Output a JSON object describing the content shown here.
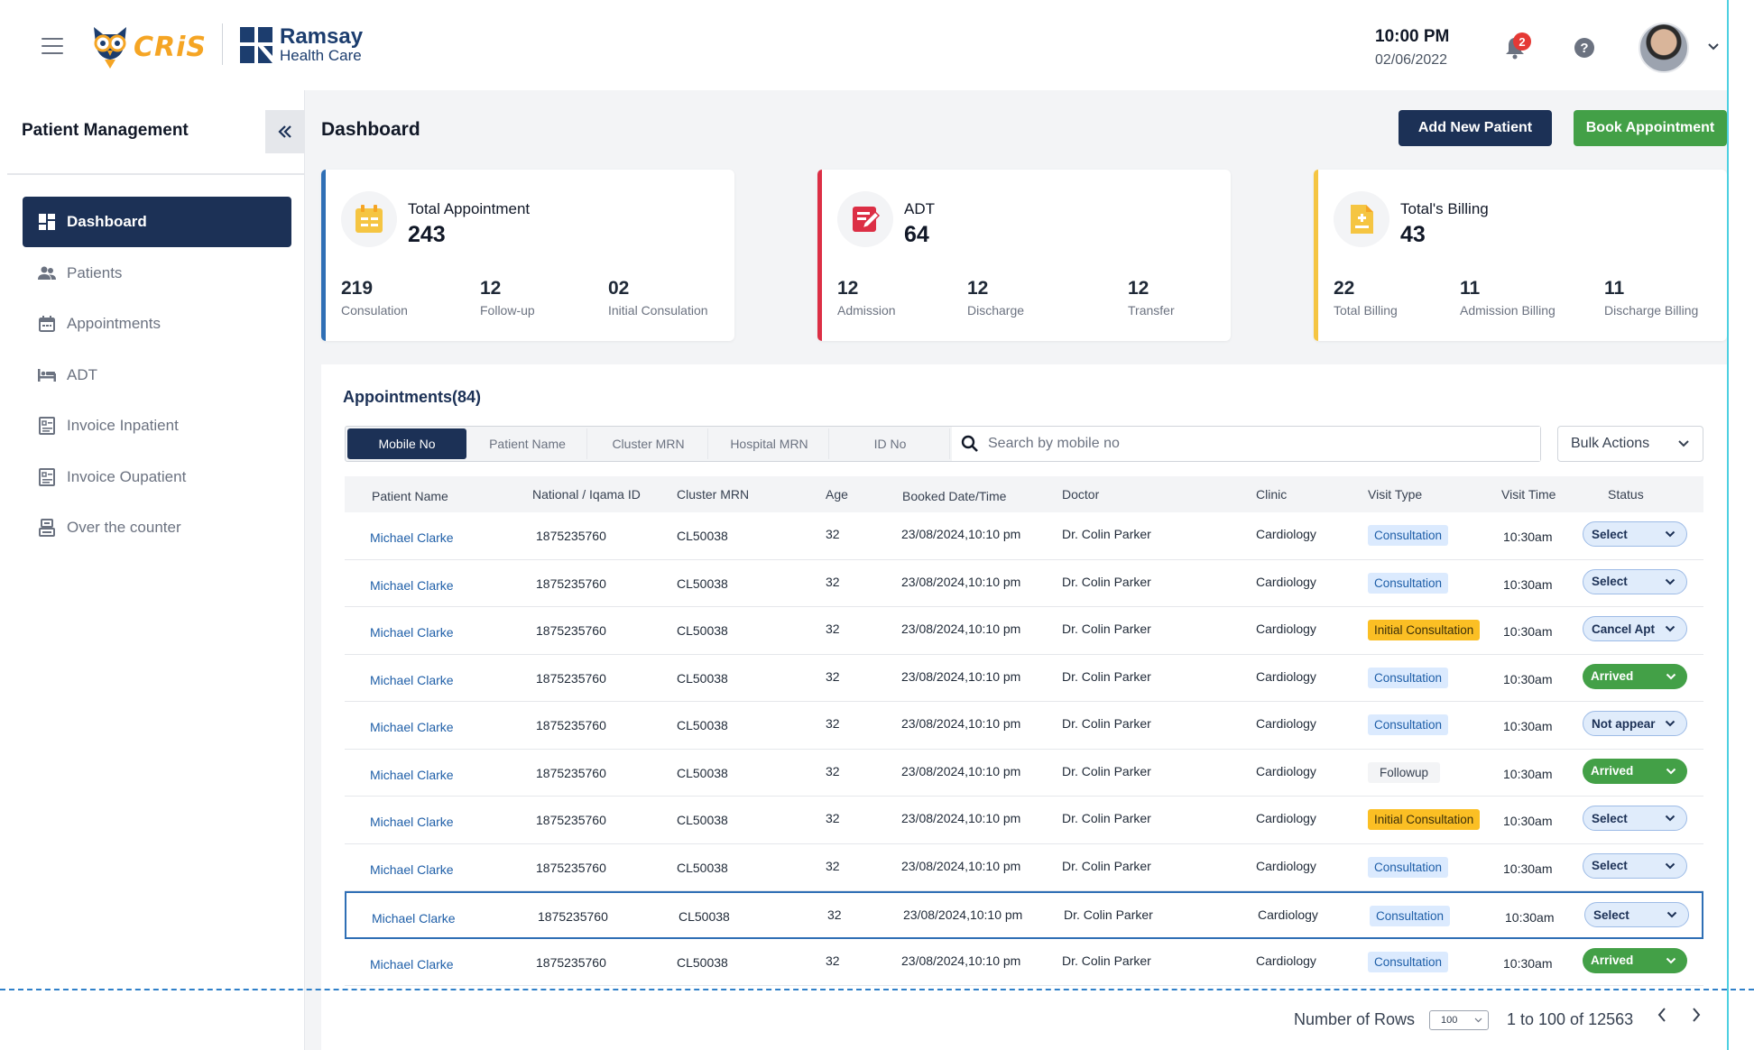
{
  "header": {
    "cris_logo": "CRiS",
    "brand_title": "Ramsay",
    "brand_subtitle": "Health Care",
    "time": "10:00 PM",
    "date": "02/06/2022",
    "notification_count": "2",
    "help_glyph": "?"
  },
  "sidebar": {
    "title": "Patient Management",
    "items": [
      {
        "label": "Dashboard",
        "icon": "dashboard-icon",
        "active": true
      },
      {
        "label": "Patients",
        "icon": "people-icon"
      },
      {
        "label": "Appointments",
        "icon": "calendar-icon"
      },
      {
        "label": "ADT",
        "icon": "bed-icon"
      },
      {
        "label": "Invoice Inpatient",
        "icon": "invoice-icon"
      },
      {
        "label": "Invoice Oupatient",
        "icon": "invoice-icon"
      },
      {
        "label": "Over the counter",
        "icon": "counter-icon"
      }
    ]
  },
  "main": {
    "title": "Dashboard",
    "add_patient_label": "Add New Patient",
    "book_appointment_label": "Book Appointment"
  },
  "cards": [
    {
      "label": "Total Appointment",
      "value": "243",
      "accent": "#2f6fb5",
      "icon_color": "#f5a524",
      "stats": [
        {
          "num": "219",
          "label": "Consulation"
        },
        {
          "num": "12",
          "label": "Follow-up"
        },
        {
          "num": "02",
          "label": "Initial Consulation"
        }
      ]
    },
    {
      "label": "ADT",
      "value": "64",
      "accent": "#dc2f45",
      "icon_color": "#dc2f45",
      "stats": [
        {
          "num": "12",
          "label": "Admission"
        },
        {
          "num": "12",
          "label": "Discharge"
        },
        {
          "num": "12",
          "label": "Transfer"
        }
      ]
    },
    {
      "label": "Total's Billing",
      "value": "43",
      "accent": "#f5c542",
      "icon_color": "#f5c542",
      "stats": [
        {
          "num": "22",
          "label": "Total Billing"
        },
        {
          "num": "11",
          "label": "Admission Billing"
        },
        {
          "num": "11",
          "label": "Discharge Billing"
        }
      ]
    }
  ],
  "appointments": {
    "title": "Appointments(84)",
    "filters": [
      "Mobile No",
      "Patient Name",
      "Cluster MRN",
      "Hospital MRN",
      "ID No"
    ],
    "search_placeholder": "Search by mobile no",
    "bulk_actions_label": "Bulk Actions",
    "columns": [
      "Patient Name",
      "National / Iqama ID",
      "Cluster MRN",
      "Age",
      "Booked  Date/Time",
      "Doctor",
      "Clinic",
      "Visit Type",
      "Visit Time",
      "Status"
    ],
    "rows": [
      {
        "name": "Michael Clarke",
        "nid": "1875235760",
        "mrn": "CL50038",
        "age": "32",
        "booked": "23/08/2024,10:10 pm",
        "doctor": "Dr. Colin Parker",
        "clinic": "Cardiology",
        "visit": "Consultation",
        "visit_kind": "cons",
        "time": "10:30am",
        "status": "Select",
        "status_kind": "select"
      },
      {
        "name": "Michael Clarke",
        "nid": "1875235760",
        "mrn": "CL50038",
        "age": "32",
        "booked": "23/08/2024,10:10 pm",
        "doctor": "Dr. Colin Parker",
        "clinic": "Cardiology",
        "visit": "Consultation",
        "visit_kind": "cons",
        "time": "10:30am",
        "status": "Select",
        "status_kind": "select"
      },
      {
        "name": "Michael Clarke",
        "nid": "1875235760",
        "mrn": "CL50038",
        "age": "32",
        "booked": "23/08/2024,10:10 pm",
        "doctor": "Dr. Colin Parker",
        "clinic": "Cardiology",
        "visit": "Initial Consultation",
        "visit_kind": "init",
        "time": "10:30am",
        "status": "Cancel Apt",
        "status_kind": "select"
      },
      {
        "name": "Michael Clarke",
        "nid": "1875235760",
        "mrn": "CL50038",
        "age": "32",
        "booked": "23/08/2024,10:10 pm",
        "doctor": "Dr. Colin Parker",
        "clinic": "Cardiology",
        "visit": "Consultation",
        "visit_kind": "cons",
        "time": "10:30am",
        "status": "Arrived",
        "status_kind": "arrived"
      },
      {
        "name": "Michael Clarke",
        "nid": "1875235760",
        "mrn": "CL50038",
        "age": "32",
        "booked": "23/08/2024,10:10 pm",
        "doctor": "Dr. Colin Parker",
        "clinic": "Cardiology",
        "visit": "Consultation",
        "visit_kind": "cons",
        "time": "10:30am",
        "status": "Not appear",
        "status_kind": "select"
      },
      {
        "name": "Michael Clarke",
        "nid": "1875235760",
        "mrn": "CL50038",
        "age": "32",
        "booked": "23/08/2024,10:10 pm",
        "doctor": "Dr. Colin Parker",
        "clinic": "Cardiology",
        "visit": "Followup",
        "visit_kind": "follow",
        "time": "10:30am",
        "status": "Arrived",
        "status_kind": "arrived"
      },
      {
        "name": "Michael Clarke",
        "nid": "1875235760",
        "mrn": "CL50038",
        "age": "32",
        "booked": "23/08/2024,10:10 pm",
        "doctor": "Dr. Colin Parker",
        "clinic": "Cardiology",
        "visit": "Initial Consultation",
        "visit_kind": "init",
        "time": "10:30am",
        "status": "Select",
        "status_kind": "select"
      },
      {
        "name": "Michael Clarke",
        "nid": "1875235760",
        "mrn": "CL50038",
        "age": "32",
        "booked": "23/08/2024,10:10 pm",
        "doctor": "Dr. Colin Parker",
        "clinic": "Cardiology",
        "visit": "Consultation",
        "visit_kind": "cons",
        "time": "10:30am",
        "status": "Select",
        "status_kind": "select"
      },
      {
        "name": "Michael Clarke",
        "nid": "1875235760",
        "mrn": "CL50038",
        "age": "32",
        "booked": "23/08/2024,10:10 pm",
        "doctor": "Dr. Colin Parker",
        "clinic": "Cardiology",
        "visit": "Consultation",
        "visit_kind": "cons",
        "time": "10:30am",
        "status": "Select",
        "status_kind": "select",
        "selected": true
      },
      {
        "name": "Michael Clarke",
        "nid": "1875235760",
        "mrn": "CL50038",
        "age": "32",
        "booked": "23/08/2024,10:10 pm",
        "doctor": "Dr. Colin Parker",
        "clinic": "Cardiology",
        "visit": "Consultation",
        "visit_kind": "cons",
        "time": "10:30am",
        "status": "Arrived",
        "status_kind": "arrived"
      }
    ]
  },
  "pagination": {
    "rows_label": "Number of Rows",
    "rows_value": "100",
    "range": "1 to 100 of 12563"
  },
  "colors": {
    "navy": "#1c3156",
    "green": "#43a047",
    "link": "#1f5fa8"
  }
}
